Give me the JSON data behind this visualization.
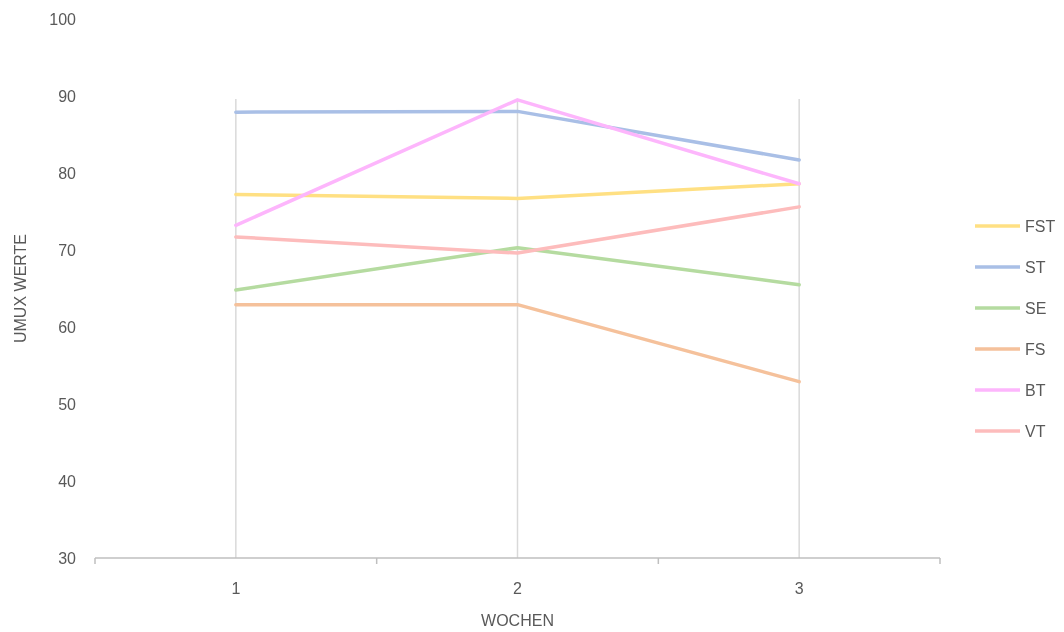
{
  "chart_data": {
    "type": "line",
    "xlabel": "WOCHEN",
    "ylabel": "UMUX WERTE",
    "categories": [
      "1",
      "2",
      "3"
    ],
    "ylim": [
      30,
      100
    ],
    "yticks": [
      30,
      40,
      50,
      60,
      70,
      80,
      90,
      100
    ],
    "grid": "x",
    "legend": "right",
    "marker": "none",
    "line_style": "solid",
    "series": [
      {
        "name": "FST",
        "color": "#ffe083",
        "values": [
          77.2,
          76.7,
          78.6
        ]
      },
      {
        "name": "ST",
        "color": "#a9bfe6",
        "values": [
          87.9,
          88.0,
          81.7
        ]
      },
      {
        "name": "SE",
        "color": "#b5dba0",
        "values": [
          64.8,
          70.3,
          65.5
        ]
      },
      {
        "name": "FS",
        "color": "#f5c19b",
        "values": [
          62.9,
          62.9,
          52.9
        ]
      },
      {
        "name": "BT",
        "color": "#fdb6fc",
        "values": [
          73.2,
          89.5,
          78.6
        ]
      },
      {
        "name": "VT",
        "color": "#fdbcbc",
        "values": [
          71.7,
          69.6,
          75.6
        ]
      }
    ]
  }
}
